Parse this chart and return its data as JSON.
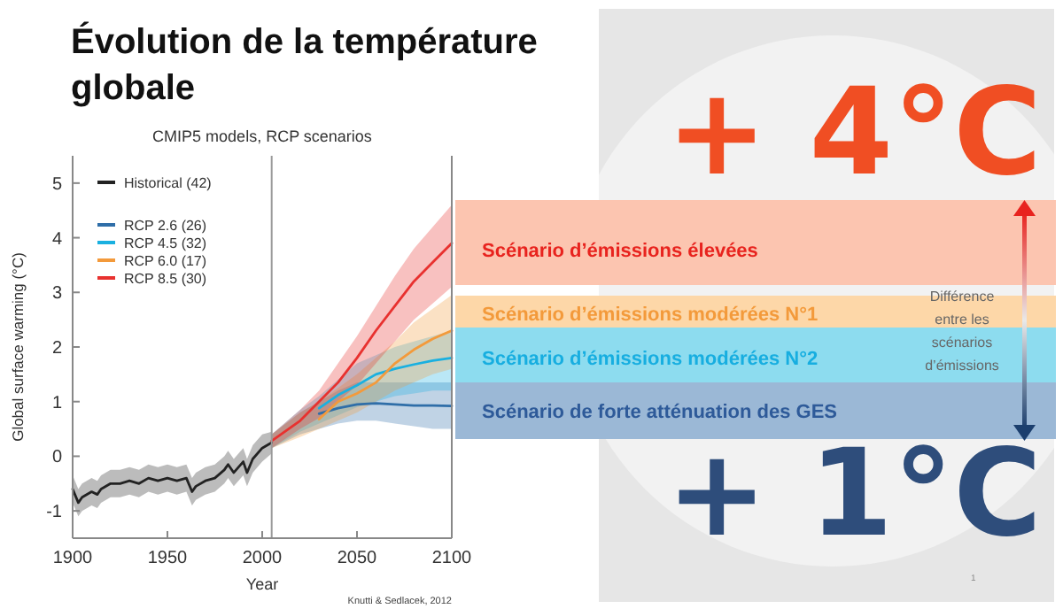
{
  "chart_data": {
    "type": "line",
    "title": "Évolution de la température globale",
    "subtitle": "CMIP5 models, RCP scenarios",
    "xlabel": "Year",
    "ylabel": "Global surface warming (°C)",
    "xlim": [
      1900,
      2100
    ],
    "ylim": [
      -1.5,
      5.5
    ],
    "xticks": [
      1900,
      1950,
      2000,
      2050,
      2100
    ],
    "yticks": [
      -1,
      0,
      1,
      2,
      3,
      4,
      5
    ],
    "legend": "top left",
    "ref_lines": [
      {
        "axis": "x",
        "value": 2005,
        "color": "#9a9a9a"
      }
    ],
    "series": [
      {
        "name": "Historical (42)",
        "color": "#222222",
        "x": [
          1900,
          1903,
          1905,
          1910,
          1913,
          1915,
          1920,
          1925,
          1930,
          1935,
          1940,
          1945,
          1950,
          1955,
          1960,
          1963,
          1965,
          1970,
          1975,
          1980,
          1982,
          1985,
          1990,
          1992,
          1995,
          2000,
          2005
        ],
        "values": [
          -0.6,
          -0.85,
          -0.75,
          -0.65,
          -0.7,
          -0.6,
          -0.5,
          -0.5,
          -0.45,
          -0.5,
          -0.4,
          -0.45,
          -0.4,
          -0.45,
          -0.4,
          -0.65,
          -0.55,
          -0.45,
          -0.4,
          -0.25,
          -0.15,
          -0.3,
          -0.1,
          -0.3,
          -0.05,
          0.15,
          0.25
        ],
        "lower": [
          -0.85,
          -1.1,
          -1.0,
          -0.9,
          -0.95,
          -0.85,
          -0.75,
          -0.75,
          -0.7,
          -0.75,
          -0.65,
          -0.7,
          -0.65,
          -0.7,
          -0.65,
          -0.9,
          -0.8,
          -0.7,
          -0.65,
          -0.5,
          -0.4,
          -0.55,
          -0.35,
          -0.55,
          -0.3,
          -0.1,
          0.05
        ],
        "upper": [
          -0.35,
          -0.6,
          -0.5,
          -0.4,
          -0.45,
          -0.35,
          -0.25,
          -0.25,
          -0.2,
          -0.25,
          -0.15,
          -0.2,
          -0.15,
          -0.2,
          -0.15,
          -0.4,
          -0.3,
          -0.2,
          -0.15,
          0.0,
          0.1,
          -0.05,
          0.15,
          -0.05,
          0.2,
          0.4,
          0.45
        ]
      },
      {
        "name": "RCP 2.6 (26)",
        "color": "#2f6ea8",
        "x": [
          2005,
          2020,
          2030,
          2040,
          2050,
          2060,
          2070,
          2080,
          2090,
          2100
        ],
        "values": [
          null,
          null,
          0.78,
          0.88,
          0.95,
          0.97,
          0.95,
          0.93,
          0.93,
          0.92
        ],
        "lower": [
          0.15,
          0.4,
          0.5,
          0.6,
          0.65,
          0.65,
          0.6,
          0.55,
          0.5,
          0.5
        ],
        "upper": [
          0.4,
          0.8,
          1.0,
          1.2,
          1.35,
          1.35,
          1.35,
          1.35,
          1.35,
          1.35
        ]
      },
      {
        "name": "RCP 4.5 (32)",
        "color": "#1ab0e0",
        "x": [
          2005,
          2020,
          2030,
          2040,
          2050,
          2060,
          2070,
          2080,
          2090,
          2100
        ],
        "values": [
          null,
          null,
          0.88,
          1.12,
          1.3,
          1.5,
          1.6,
          1.68,
          1.75,
          1.8
        ],
        "lower": [
          0.15,
          0.45,
          0.6,
          0.75,
          0.9,
          1.0,
          1.1,
          1.15,
          1.2,
          1.2
        ],
        "upper": [
          0.4,
          0.85,
          1.1,
          1.4,
          1.7,
          1.85,
          2.0,
          2.1,
          2.2,
          2.3
        ]
      },
      {
        "name": "RCP 6.0 (17)",
        "color": "#f39a3b",
        "x": [
          2005,
          2020,
          2030,
          2040,
          2050,
          2060,
          2070,
          2080,
          2090,
          2100
        ],
        "values": [
          null,
          null,
          0.68,
          1.0,
          1.15,
          1.35,
          1.7,
          1.95,
          2.15,
          2.3
        ],
        "lower": [
          0.15,
          0.35,
          0.5,
          0.65,
          0.8,
          1.0,
          1.2,
          1.35,
          1.5,
          1.6
        ],
        "upper": [
          0.4,
          0.8,
          1.0,
          1.25,
          1.5,
          1.8,
          2.1,
          2.45,
          2.7,
          2.95
        ]
      },
      {
        "name": "RCP 8.5 (30)",
        "color": "#e8312f",
        "x": [
          2005,
          2020,
          2030,
          2040,
          2050,
          2060,
          2070,
          2080,
          2090,
          2100
        ],
        "values": [
          0.28,
          0.65,
          1.0,
          1.35,
          1.8,
          2.3,
          2.75,
          3.2,
          3.55,
          3.9
        ],
        "lower": [
          0.15,
          0.5,
          0.7,
          1.0,
          1.3,
          1.7,
          2.1,
          2.5,
          2.8,
          3.1
        ],
        "upper": [
          0.4,
          0.85,
          1.2,
          1.7,
          2.2,
          2.75,
          3.3,
          3.8,
          4.2,
          4.6
        ]
      }
    ],
    "annotations": [
      "Knutti & Sedlacek, 2012",
      "+ 4°C",
      "Scénario d’émissions élevées",
      "Scénario d’émissions modérées N°1",
      "Scénario d’émissions modérées N°2",
      "Scénario de forte atténuation des GES",
      "Différence entre les scénarios d’émissions",
      "+ 1°C",
      "1"
    ]
  }
}
